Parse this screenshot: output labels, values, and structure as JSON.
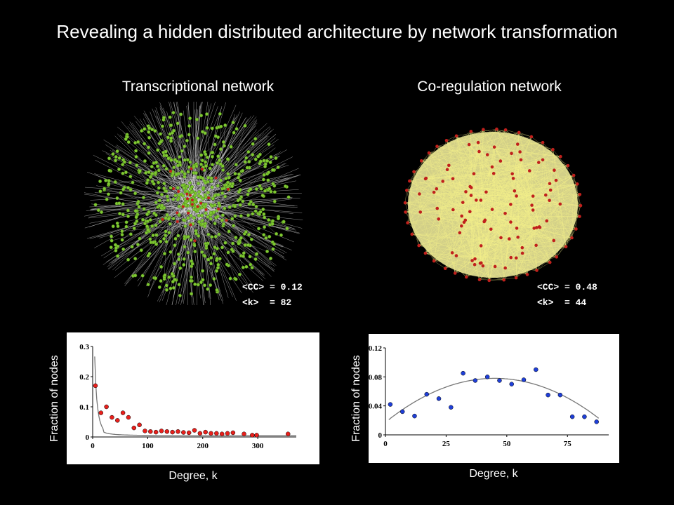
{
  "title": "Revealing a hidden distributed architecture by network transformation",
  "networks": {
    "left": {
      "title": "Transcriptional network",
      "cc_label": "<CC> = 0.12",
      "k_label": "<k>  = 82"
    },
    "right": {
      "title": "Co-regulation network",
      "cc_label": "<CC> = 0.48",
      "k_label": "<k>  = 44"
    }
  },
  "colors": {
    "background": "#000000",
    "left_node": "#7ec832",
    "right_node": "#c0201c",
    "right_edge": "#f4f08a",
    "left_point": "#e8201c",
    "right_point": "#1f3fd8"
  },
  "chart_data": [
    {
      "type": "scatter",
      "title": "",
      "xlabel": "Degree, k",
      "ylabel": "Fraction of nodes",
      "xlim": [
        0,
        370
      ],
      "ylim": [
        0,
        0.3
      ],
      "xticks": [
        "0",
        "100",
        "200",
        "300"
      ],
      "yticks": [
        "0",
        "0.1",
        "0.2",
        "0.3"
      ],
      "points": [
        {
          "x": 5,
          "y": 0.17
        },
        {
          "x": 15,
          "y": 0.08
        },
        {
          "x": 25,
          "y": 0.1
        },
        {
          "x": 35,
          "y": 0.065
        },
        {
          "x": 45,
          "y": 0.055
        },
        {
          "x": 55,
          "y": 0.08
        },
        {
          "x": 65,
          "y": 0.065
        },
        {
          "x": 75,
          "y": 0.03
        },
        {
          "x": 85,
          "y": 0.04
        },
        {
          "x": 95,
          "y": 0.02
        },
        {
          "x": 105,
          "y": 0.018
        },
        {
          "x": 115,
          "y": 0.016
        },
        {
          "x": 125,
          "y": 0.02
        },
        {
          "x": 135,
          "y": 0.018
        },
        {
          "x": 145,
          "y": 0.016
        },
        {
          "x": 155,
          "y": 0.018
        },
        {
          "x": 165,
          "y": 0.015
        },
        {
          "x": 175,
          "y": 0.014
        },
        {
          "x": 185,
          "y": 0.022
        },
        {
          "x": 195,
          "y": 0.012
        },
        {
          "x": 205,
          "y": 0.016
        },
        {
          "x": 215,
          "y": 0.012
        },
        {
          "x": 225,
          "y": 0.012
        },
        {
          "x": 235,
          "y": 0.01
        },
        {
          "x": 245,
          "y": 0.012
        },
        {
          "x": 255,
          "y": 0.014
        },
        {
          "x": 275,
          "y": 0.01
        },
        {
          "x": 290,
          "y": 0.006
        },
        {
          "x": 298,
          "y": 0.006
        },
        {
          "x": 355,
          "y": 0.01
        }
      ],
      "fit": "power-law decay"
    },
    {
      "type": "scatter",
      "title": "",
      "xlabel": "Degree, k",
      "ylabel": "Fraction of nodes",
      "xlim": [
        0,
        92
      ],
      "ylim": [
        0,
        0.12
      ],
      "xticks": [
        "0",
        "25",
        "50",
        "75"
      ],
      "yticks": [
        "0",
        "0.04",
        "0.08",
        "0.12"
      ],
      "points": [
        {
          "x": 2,
          "y": 0.042
        },
        {
          "x": 7,
          "y": 0.032
        },
        {
          "x": 12,
          "y": 0.026
        },
        {
          "x": 17,
          "y": 0.056
        },
        {
          "x": 22,
          "y": 0.05
        },
        {
          "x": 27,
          "y": 0.038
        },
        {
          "x": 32,
          "y": 0.085
        },
        {
          "x": 37,
          "y": 0.075
        },
        {
          "x": 42,
          "y": 0.08
        },
        {
          "x": 47,
          "y": 0.075
        },
        {
          "x": 52,
          "y": 0.07
        },
        {
          "x": 57,
          "y": 0.076
        },
        {
          "x": 62,
          "y": 0.09
        },
        {
          "x": 67,
          "y": 0.055
        },
        {
          "x": 72,
          "y": 0.055
        },
        {
          "x": 77,
          "y": 0.025
        },
        {
          "x": 82,
          "y": 0.025
        },
        {
          "x": 87,
          "y": 0.018
        }
      ],
      "fit": "parabolic"
    }
  ]
}
